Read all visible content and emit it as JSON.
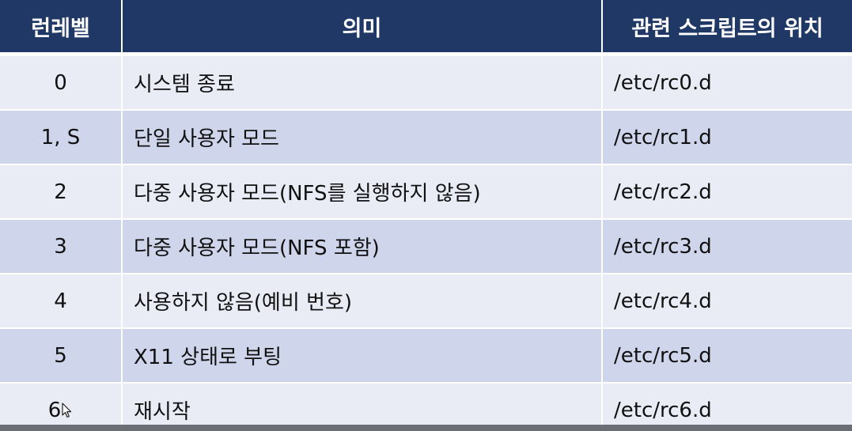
{
  "table": {
    "headers": [
      "런레벨",
      "의미",
      "관련 스크립트의 위치"
    ],
    "rows": [
      {
        "level": "0",
        "meaning": "시스템 종료",
        "path": "/etc/rc0.d"
      },
      {
        "level": "1, S",
        "meaning": "단일 사용자 모드",
        "path": "/etc/rc1.d"
      },
      {
        "level": "2",
        "meaning": "다중 사용자 모드(NFS를 실행하지 않음)",
        "path": "/etc/rc2.d"
      },
      {
        "level": "3",
        "meaning": "다중 사용자 모드(NFS 포함)",
        "path": "/etc/rc3.d"
      },
      {
        "level": "4",
        "meaning": "사용하지 않음(예비 번호)",
        "path": "/etc/rc4.d"
      },
      {
        "level": "5",
        "meaning": "X11 상태로 부팅",
        "path": "/etc/rc5.d"
      },
      {
        "level": "6",
        "meaning": "재시작",
        "path": "/etc/rc6.d"
      }
    ]
  },
  "colors": {
    "header_bg": "#1f3866",
    "row_light": "#e9ebf5",
    "row_dark": "#cfd5ea"
  },
  "cursor_icon": "mouse-pointer-icon"
}
